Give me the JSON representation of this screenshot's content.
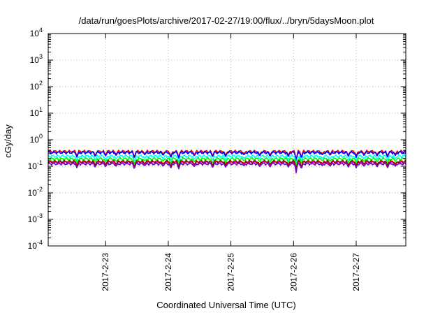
{
  "chart_data": {
    "type": "line",
    "title": "/data/run/goesPlots/archive/2017-02-27/19:00/flux/../bryn/5daysMoon.plot",
    "xlabel": "Coordinated Universal Time (UTC)",
    "ylabel": "cGy/day",
    "xlim": [
      "2017-02-22 02:00",
      "2017-02-27 19:00"
    ],
    "ylim": [
      0.0001,
      10000
    ],
    "yscale": "log",
    "grid": true,
    "x_tick_labels": [
      "2017-2-23",
      "2017-2-24",
      "2017-2-25",
      "2017-2-26",
      "2017-2-27"
    ],
    "y_tick_labels": [
      {
        "base": "10",
        "exp": "4"
      },
      {
        "base": "10",
        "exp": "3"
      },
      {
        "base": "10",
        "exp": "2"
      },
      {
        "base": "10",
        "exp": "1"
      },
      {
        "base": "10",
        "exp": "0"
      },
      {
        "base": "10",
        "exp": "-1"
      },
      {
        "base": "10",
        "exp": "-2"
      },
      {
        "base": "10",
        "exp": "-3"
      },
      {
        "base": "10",
        "exp": "-4"
      }
    ],
    "series": [
      {
        "color": "#ff0000",
        "level": 0.36,
        "dip_factor": 0.6
      },
      {
        "color": "#0000ff",
        "level": 0.33,
        "dip_factor": 0.6
      },
      {
        "color": "#00ffff",
        "level": 0.24,
        "dip_factor": 0.7
      },
      {
        "color": "#00ff00",
        "level": 0.19,
        "dip_factor": 0.75
      },
      {
        "color": "#ff00ff",
        "level": 0.14,
        "dip_factor": 0.45
      },
      {
        "color": "#a00000",
        "level": 0.15,
        "dip_factor": 0.8
      },
      {
        "color": "#6a0dad",
        "level": 0.125,
        "dip_factor": 0.8
      }
    ],
    "dips": [
      {
        "x": "2017-02-22 13:00",
        "depth": 0.55
      },
      {
        "x": "2017-02-22 20:00",
        "depth": 0.6
      },
      {
        "x": "2017-02-23 00:00",
        "depth": 0.65
      },
      {
        "x": "2017-02-23 04:00",
        "depth": 0.7
      },
      {
        "x": "2017-02-23 11:00",
        "depth": 0.45
      },
      {
        "x": "2017-02-23 15:00",
        "depth": 0.75
      },
      {
        "x": "2017-02-23 22:00",
        "depth": 0.7
      },
      {
        "x": "2017-02-24 01:00",
        "depth": 0.5
      },
      {
        "x": "2017-02-24 04:00",
        "depth": 0.45
      },
      {
        "x": "2017-02-24 10:00",
        "depth": 0.65
      },
      {
        "x": "2017-02-24 17:00",
        "depth": 0.55
      },
      {
        "x": "2017-02-24 22:00",
        "depth": 0.6
      },
      {
        "x": "2017-02-25 05:00",
        "depth": 0.75
      },
      {
        "x": "2017-02-25 11:00",
        "depth": 0.65
      },
      {
        "x": "2017-02-25 15:00",
        "depth": 0.6
      },
      {
        "x": "2017-02-25 22:00",
        "depth": 0.6
      },
      {
        "x": "2017-02-26 01:00",
        "depth": 0.25
      },
      {
        "x": "2017-02-26 03:00",
        "depth": 0.45
      },
      {
        "x": "2017-02-26 11:00",
        "depth": 0.75
      },
      {
        "x": "2017-02-26 14:00",
        "depth": 0.7
      },
      {
        "x": "2017-02-26 21:00",
        "depth": 0.6
      },
      {
        "x": "2017-02-27 00:00",
        "depth": 0.55
      },
      {
        "x": "2017-02-27 03:00",
        "depth": 0.7
      },
      {
        "x": "2017-02-27 08:00",
        "depth": 0.65
      },
      {
        "x": "2017-02-27 12:00",
        "depth": 0.55
      },
      {
        "x": "2017-02-27 15:00",
        "depth": 0.7
      }
    ]
  }
}
